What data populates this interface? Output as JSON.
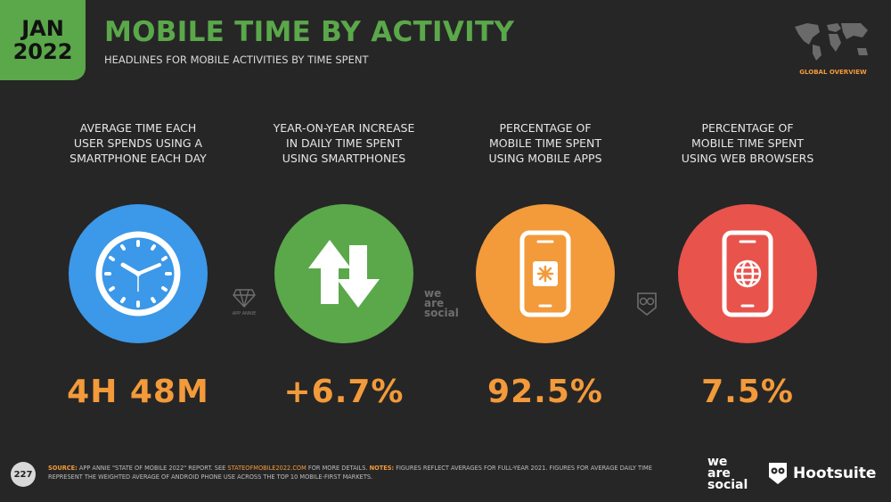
{
  "header": {
    "date_month": "JAN",
    "date_year": "2022",
    "title": "MOBILE TIME BY ACTIVITY",
    "subtitle": "HEADLINES FOR MOBILE ACTIVITIES BY TIME SPENT",
    "region_label": "GLOBAL OVERVIEW"
  },
  "stats": [
    {
      "label_lines": [
        "AVERAGE TIME EACH",
        "USER SPENDS USING A",
        "SMARTPHONE EACH DAY"
      ],
      "value": "4H 48M",
      "color": "#3c98e8",
      "icon": "clock-icon"
    },
    {
      "label_lines": [
        "YEAR-ON-YEAR INCREASE",
        "IN DAILY TIME SPENT",
        "USING SMARTPHONES"
      ],
      "value": "+6.7%",
      "color": "#5aa84a",
      "icon": "up-down-arrows-icon"
    },
    {
      "label_lines": [
        "PERCENTAGE OF",
        "MOBILE TIME SPENT",
        "USING MOBILE APPS"
      ],
      "value": "92.5%",
      "color": "#f39a3a",
      "icon": "phone-app-icon"
    },
    {
      "label_lines": [
        "PERCENTAGE OF",
        "MOBILE TIME SPENT",
        "USING WEB BROWSERS"
      ],
      "value": "7.5%",
      "color": "#e8534c",
      "icon": "phone-globe-icon"
    }
  ],
  "watermarks": {
    "app_annie": "APP ANNIE",
    "we_are_social": [
      "we",
      "are",
      "social"
    ]
  },
  "footer": {
    "page_number": "227",
    "source_label": "SOURCE:",
    "source_text": " APP ANNIE \"STATE OF MOBILE 2022\" REPORT. SEE ",
    "source_link": "STATEOFMOBILE2022.COM",
    "source_text2": " FOR MORE DETAILS. ",
    "notes_label": "NOTES:",
    "notes_text": " FIGURES REFLECT AVERAGES FOR FULL-YEAR 2021. FIGURES FOR AVERAGE DAILY TIME REPRESENT THE WEIGHTED AVERAGE OF ANDROID PHONE USE ACROSS THE TOP 10 MOBILE-FIRST MARKETS.",
    "logo_we_are_social": [
      "we",
      "are",
      "social"
    ],
    "logo_hootsuite": "Hootsuite"
  }
}
